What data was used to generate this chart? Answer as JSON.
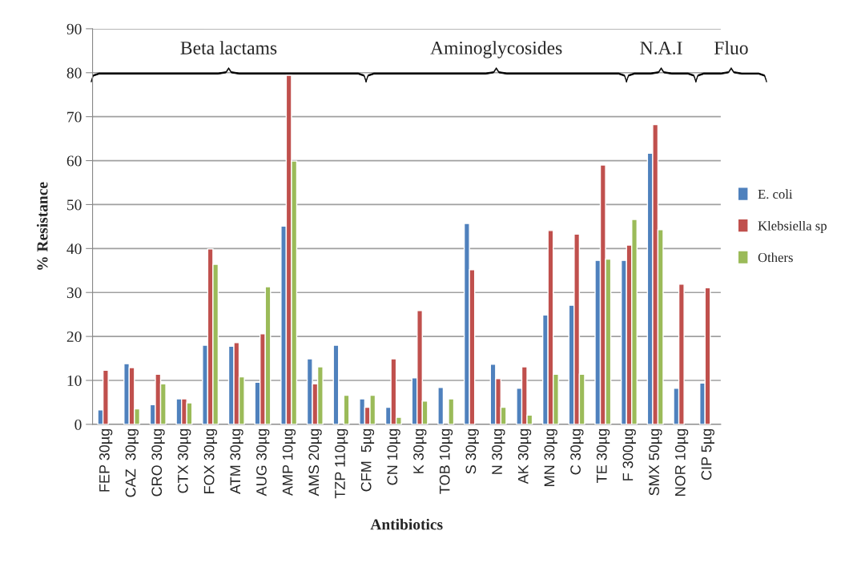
{
  "chart_data": {
    "type": "bar",
    "xlabel": "Antibiotics",
    "ylabel": "% Resistance",
    "categories": [
      "FEP 30µg",
      "CAZ  30µg",
      "CRO 30µg",
      "CTX 30µg",
      "FOX 30µg",
      "ATM 30µg",
      "AUG 30µg",
      "AMP 10µg",
      "AMS 20µg",
      "TZP 110µg",
      "CFM  5µg",
      "CN 10µg",
      "K 30µg",
      "TOB 10µg",
      "S 30µg",
      "N 30µg",
      "AK 30µg",
      "MN 30µg",
      "C 30µg",
      "TE 30µg",
      "F 300µg",
      "SMX 50µg",
      "NOR 10µg",
      "CIP 5µg"
    ],
    "series": [
      {
        "name": "E. coli",
        "color": "#4f81bd",
        "values": [
          3.3,
          13.8,
          4.5,
          5.8,
          18.0,
          17.8,
          9.6,
          45.1,
          14.9,
          18.0,
          5.8,
          3.9,
          10.6,
          8.4,
          45.7,
          13.7,
          8.2,
          24.9,
          27.1,
          37.3,
          37.3,
          61.7,
          8.2,
          9.4
        ]
      },
      {
        "name": "Klebsiella sp",
        "color": "#c0504d",
        "values": [
          12.3,
          12.9,
          11.4,
          5.8,
          39.9,
          18.6,
          20.6,
          79.4,
          9.2,
          null,
          3.9,
          14.9,
          25.9,
          null,
          35.2,
          10.4,
          13.1,
          44.1,
          43.3,
          59.0,
          40.8,
          68.2,
          31.9,
          31.1
        ]
      },
      {
        "name": "Others",
        "color": "#9bbb59",
        "values": [
          null,
          3.5,
          9.2,
          4.9,
          36.4,
          10.8,
          31.3,
          59.9,
          13.1,
          6.6,
          6.6,
          1.6,
          5.3,
          5.8,
          null,
          3.9,
          2.1,
          11.4,
          11.4,
          37.6,
          46.6,
          44.3,
          null,
          null
        ]
      }
    ],
    "ylim": [
      0,
      90
    ],
    "yticks": [
      0,
      10,
      20,
      30,
      40,
      50,
      60,
      70,
      80,
      90
    ],
    "grid": "y",
    "legend": "right",
    "annotations": [
      "Beta lactams",
      "Aminoglycosides",
      "N.A.I",
      "Fluo"
    ]
  }
}
